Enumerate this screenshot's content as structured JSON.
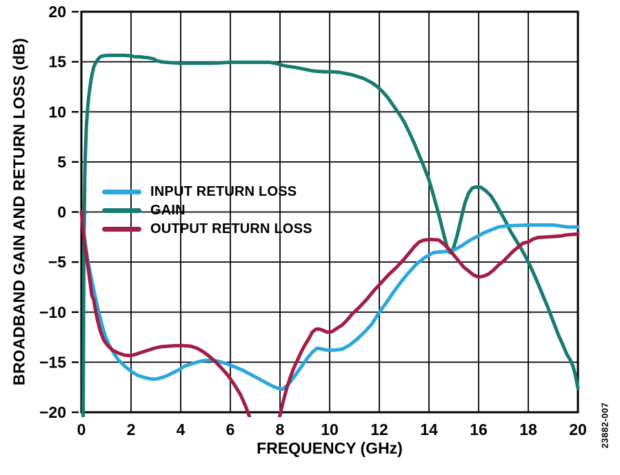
{
  "figure": {
    "y_axis_title": "BROADBAND GAIN AND RETURN LOSS (dB)",
    "x_axis_title": "FREQUENCY (GHz)",
    "watermark": "23882-007"
  },
  "chart_data": {
    "type": "line",
    "xlabel": "FREQUENCY (GHz)",
    "ylabel": "BROADBAND GAIN AND RETURN LOSS (dB)",
    "xlim": [
      0,
      20
    ],
    "ylim": [
      -20,
      20
    ],
    "x_ticks": [
      0,
      2,
      4,
      6,
      8,
      10,
      12,
      14,
      16,
      18,
      20
    ],
    "x_tick_labels": [
      "0",
      "2",
      "4",
      "6",
      "8",
      "10",
      "12",
      "14",
      "16",
      "18",
      "20"
    ],
    "y_ticks": [
      20,
      15,
      10,
      5,
      0,
      -5,
      -10,
      -15,
      -20
    ],
    "y_tick_labels": [
      "20",
      "15",
      "10",
      "5",
      "0",
      "−5",
      "−10",
      "−15",
      "−20"
    ],
    "grid": true,
    "legend_position": "inside-left-middle",
    "axis_color": "#000000",
    "series": [
      {
        "name": "INPUT RETURN LOSS",
        "color": "#2AA7DC",
        "points": [
          [
            0,
            0
          ],
          [
            0.08,
            -1.5
          ],
          [
            0.15,
            -3
          ],
          [
            0.25,
            -4.7
          ],
          [
            0.35,
            -6
          ],
          [
            0.5,
            -7.8
          ],
          [
            0.65,
            -9.5
          ],
          [
            0.8,
            -11
          ],
          [
            0.95,
            -12.3
          ],
          [
            1.1,
            -13.2
          ],
          [
            1.3,
            -14.1
          ],
          [
            1.5,
            -14.8
          ],
          [
            1.75,
            -15.4
          ],
          [
            2.0,
            -15.9
          ],
          [
            2.25,
            -16.3
          ],
          [
            2.5,
            -16.5
          ],
          [
            2.75,
            -16.65
          ],
          [
            2.95,
            -16.7
          ],
          [
            3.15,
            -16.6
          ],
          [
            3.4,
            -16.4
          ],
          [
            3.65,
            -16.1
          ],
          [
            3.9,
            -15.8
          ],
          [
            4.15,
            -15.4
          ],
          [
            4.4,
            -15.2
          ],
          [
            4.65,
            -15.0
          ],
          [
            4.9,
            -14.85
          ],
          [
            5.15,
            -14.8
          ],
          [
            5.4,
            -14.85
          ],
          [
            5.65,
            -15.0
          ],
          [
            5.9,
            -15.2
          ],
          [
            6.2,
            -15.5
          ],
          [
            6.5,
            -15.8
          ],
          [
            6.8,
            -16.2
          ],
          [
            7.1,
            -16.6
          ],
          [
            7.4,
            -17.0
          ],
          [
            7.7,
            -17.4
          ],
          [
            7.9,
            -17.6
          ],
          [
            8.1,
            -17.7
          ],
          [
            8.3,
            -17.3
          ],
          [
            8.5,
            -16.7
          ],
          [
            8.7,
            -16.0
          ],
          [
            8.9,
            -15.3
          ],
          [
            9.1,
            -14.6
          ],
          [
            9.3,
            -14.0
          ],
          [
            9.5,
            -13.6
          ],
          [
            9.7,
            -13.7
          ],
          [
            9.9,
            -13.8
          ],
          [
            10.2,
            -13.8
          ],
          [
            10.5,
            -13.7
          ],
          [
            10.8,
            -13.3
          ],
          [
            11.1,
            -12.7
          ],
          [
            11.4,
            -12.0
          ],
          [
            11.7,
            -11.2
          ],
          [
            12.0,
            -10.0
          ],
          [
            12.3,
            -9.0
          ],
          [
            12.6,
            -7.9
          ],
          [
            12.9,
            -6.9
          ],
          [
            13.2,
            -6.0
          ],
          [
            13.5,
            -5.2
          ],
          [
            13.8,
            -4.6
          ],
          [
            14.0,
            -4.3
          ],
          [
            14.2,
            -4.05
          ],
          [
            14.4,
            -4.0
          ],
          [
            14.7,
            -3.95
          ],
          [
            15.0,
            -3.8
          ],
          [
            15.3,
            -3.4
          ],
          [
            15.6,
            -2.9
          ],
          [
            15.9,
            -2.5
          ],
          [
            16.2,
            -2.1
          ],
          [
            16.5,
            -1.8
          ],
          [
            16.8,
            -1.5
          ],
          [
            17.1,
            -1.4
          ],
          [
            17.5,
            -1.35
          ],
          [
            18.0,
            -1.3
          ],
          [
            18.5,
            -1.3
          ],
          [
            19.0,
            -1.3
          ],
          [
            19.3,
            -1.4
          ],
          [
            19.6,
            -1.5
          ],
          [
            20.0,
            -1.5
          ]
        ]
      },
      {
        "name": "GAIN",
        "color": "#177B72",
        "points": [
          [
            0.07,
            -20.6
          ],
          [
            0.08,
            -15
          ],
          [
            0.09,
            -10
          ],
          [
            0.1,
            -4
          ],
          [
            0.12,
            0
          ],
          [
            0.14,
            4
          ],
          [
            0.17,
            6.5
          ],
          [
            0.2,
            8.5
          ],
          [
            0.25,
            10.3
          ],
          [
            0.3,
            11.6
          ],
          [
            0.4,
            13.4
          ],
          [
            0.5,
            14.5
          ],
          [
            0.6,
            15.0
          ],
          [
            0.7,
            15.35
          ],
          [
            0.8,
            15.55
          ],
          [
            0.9,
            15.6
          ],
          [
            1.1,
            15.65
          ],
          [
            1.4,
            15.65
          ],
          [
            1.7,
            15.65
          ],
          [
            2.0,
            15.6
          ],
          [
            2.15,
            15.5
          ],
          [
            2.35,
            15.5
          ],
          [
            2.5,
            15.45
          ],
          [
            2.7,
            15.4
          ],
          [
            2.9,
            15.3
          ],
          [
            3.05,
            15.1
          ],
          [
            3.2,
            15.0
          ],
          [
            3.4,
            14.95
          ],
          [
            3.7,
            14.9
          ],
          [
            4.0,
            14.85
          ],
          [
            4.4,
            14.85
          ],
          [
            4.8,
            14.85
          ],
          [
            5.2,
            14.85
          ],
          [
            5.6,
            14.9
          ],
          [
            6.0,
            14.95
          ],
          [
            6.4,
            14.95
          ],
          [
            6.8,
            14.95
          ],
          [
            7.2,
            14.95
          ],
          [
            7.6,
            14.95
          ],
          [
            7.9,
            14.8
          ],
          [
            8.1,
            14.65
          ],
          [
            8.3,
            14.55
          ],
          [
            8.6,
            14.45
          ],
          [
            8.9,
            14.3
          ],
          [
            9.1,
            14.2
          ],
          [
            9.3,
            14.1
          ],
          [
            9.5,
            14.05
          ],
          [
            9.8,
            14.0
          ],
          [
            10.1,
            14.0
          ],
          [
            10.4,
            13.95
          ],
          [
            10.6,
            13.85
          ],
          [
            10.9,
            13.7
          ],
          [
            11.1,
            13.55
          ],
          [
            11.4,
            13.3
          ],
          [
            11.7,
            12.9
          ],
          [
            11.9,
            12.55
          ],
          [
            12.1,
            12.1
          ],
          [
            12.35,
            11.4
          ],
          [
            12.6,
            10.5
          ],
          [
            12.8,
            9.8
          ],
          [
            13.0,
            9.0
          ],
          [
            13.2,
            8.0
          ],
          [
            13.4,
            6.9
          ],
          [
            13.6,
            5.7
          ],
          [
            13.8,
            4.5
          ],
          [
            14.0,
            3.2
          ],
          [
            14.2,
            1.5
          ],
          [
            14.4,
            -0.3
          ],
          [
            14.55,
            -1.8
          ],
          [
            14.7,
            -3.2
          ],
          [
            14.8,
            -4.0
          ],
          [
            14.9,
            -4.1
          ],
          [
            15.0,
            -3.5
          ],
          [
            15.15,
            -2.2
          ],
          [
            15.3,
            -0.6
          ],
          [
            15.45,
            0.9
          ],
          [
            15.6,
            1.9
          ],
          [
            15.75,
            2.4
          ],
          [
            15.9,
            2.5
          ],
          [
            16.1,
            2.45
          ],
          [
            16.3,
            2.1
          ],
          [
            16.5,
            1.6
          ],
          [
            16.7,
            0.8
          ],
          [
            16.9,
            -0.1
          ],
          [
            17.1,
            -1.0
          ],
          [
            17.3,
            -2.0
          ],
          [
            17.5,
            -2.8
          ],
          [
            17.7,
            -3.6
          ],
          [
            17.9,
            -4.5
          ],
          [
            18.1,
            -5.5
          ],
          [
            18.35,
            -6.9
          ],
          [
            18.6,
            -8.4
          ],
          [
            18.8,
            -9.6
          ],
          [
            19.0,
            -10.9
          ],
          [
            19.2,
            -12.2
          ],
          [
            19.4,
            -13.3
          ],
          [
            19.55,
            -14.2
          ],
          [
            19.7,
            -14.8
          ],
          [
            19.8,
            -15.4
          ],
          [
            19.9,
            -16.3
          ],
          [
            20.0,
            -17.6
          ]
        ]
      },
      {
        "name": "OUTPUT RETURN LOSS",
        "color": "#A21E45",
        "points": [
          [
            0,
            0
          ],
          [
            0.08,
            -2
          ],
          [
            0.15,
            -3.5
          ],
          [
            0.25,
            -5.2
          ],
          [
            0.35,
            -7
          ],
          [
            0.42,
            -8.3
          ],
          [
            0.5,
            -8.8
          ],
          [
            0.55,
            -9.6
          ],
          [
            0.65,
            -10.8
          ],
          [
            0.75,
            -11.8
          ],
          [
            0.9,
            -12.8
          ],
          [
            1.05,
            -13.3
          ],
          [
            1.25,
            -13.8
          ],
          [
            1.5,
            -14.1
          ],
          [
            1.75,
            -14.3
          ],
          [
            2.0,
            -14.35
          ],
          [
            2.2,
            -14.2
          ],
          [
            2.45,
            -14.0
          ],
          [
            2.7,
            -13.8
          ],
          [
            2.95,
            -13.6
          ],
          [
            3.2,
            -13.45
          ],
          [
            3.5,
            -13.4
          ],
          [
            3.8,
            -13.35
          ],
          [
            4.1,
            -13.35
          ],
          [
            4.4,
            -13.4
          ],
          [
            4.65,
            -13.6
          ],
          [
            4.9,
            -13.95
          ],
          [
            5.15,
            -14.4
          ],
          [
            5.4,
            -14.95
          ],
          [
            5.65,
            -15.6
          ],
          [
            5.9,
            -16.3
          ],
          [
            6.15,
            -17.2
          ],
          [
            6.4,
            -18.2
          ],
          [
            6.6,
            -19.3
          ],
          [
            6.75,
            -20.3
          ],
          [
            6.85,
            -21
          ],
          [
            7.9,
            -21
          ],
          [
            8.0,
            -20.3
          ],
          [
            8.1,
            -19.2
          ],
          [
            8.25,
            -17.8
          ],
          [
            8.4,
            -16.6
          ],
          [
            8.55,
            -15.6
          ],
          [
            8.7,
            -14.8
          ],
          [
            8.85,
            -14.0
          ],
          [
            9.0,
            -13.3
          ],
          [
            9.15,
            -12.7
          ],
          [
            9.3,
            -12.0
          ],
          [
            9.45,
            -11.7
          ],
          [
            9.6,
            -11.7
          ],
          [
            9.75,
            -11.85
          ],
          [
            9.9,
            -12.0
          ],
          [
            10.1,
            -11.95
          ],
          [
            10.3,
            -11.6
          ],
          [
            10.5,
            -11.3
          ],
          [
            10.7,
            -10.8
          ],
          [
            10.9,
            -10.2
          ],
          [
            11.2,
            -9.5
          ],
          [
            11.5,
            -8.7
          ],
          [
            11.8,
            -7.8
          ],
          [
            12.1,
            -7.0
          ],
          [
            12.4,
            -6.2
          ],
          [
            12.7,
            -5.5
          ],
          [
            13.0,
            -4.7
          ],
          [
            13.2,
            -4.1
          ],
          [
            13.4,
            -3.5
          ],
          [
            13.6,
            -3.0
          ],
          [
            13.8,
            -2.8
          ],
          [
            14.1,
            -2.75
          ],
          [
            14.4,
            -2.8
          ],
          [
            14.6,
            -3.2
          ],
          [
            14.8,
            -3.7
          ],
          [
            15.0,
            -4.3
          ],
          [
            15.2,
            -4.9
          ],
          [
            15.4,
            -5.5
          ],
          [
            15.6,
            -5.9
          ],
          [
            15.8,
            -6.3
          ],
          [
            16.0,
            -6.5
          ],
          [
            16.2,
            -6.4
          ],
          [
            16.4,
            -6.2
          ],
          [
            16.6,
            -5.8
          ],
          [
            16.8,
            -5.3
          ],
          [
            17.0,
            -4.9
          ],
          [
            17.2,
            -4.4
          ],
          [
            17.4,
            -3.9
          ],
          [
            17.6,
            -3.5
          ],
          [
            17.8,
            -3.1
          ],
          [
            18.0,
            -3.0
          ],
          [
            18.2,
            -2.7
          ],
          [
            18.4,
            -2.55
          ],
          [
            18.7,
            -2.5
          ],
          [
            19.0,
            -2.45
          ],
          [
            19.3,
            -2.4
          ],
          [
            19.5,
            -2.3
          ],
          [
            19.7,
            -2.25
          ],
          [
            20.0,
            -2.2
          ]
        ]
      }
    ]
  }
}
